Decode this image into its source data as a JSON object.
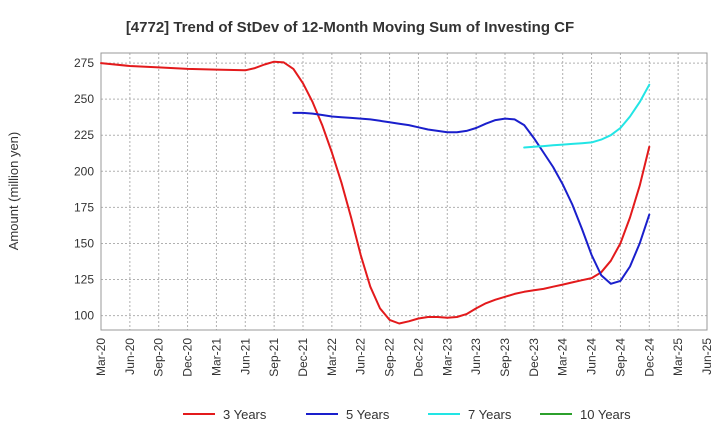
{
  "chart_data": {
    "type": "line",
    "title": "[4772]  Trend of StDev of 12-Month Moving Sum of Investing CF",
    "ylabel": "Amount (million yen)",
    "xlabel": "",
    "ylim": [
      90,
      282
    ],
    "yticks": [
      100,
      125,
      150,
      175,
      200,
      225,
      250,
      275
    ],
    "xlim": [
      "2020-03",
      "2025-06"
    ],
    "xticks": [
      "Mar-20",
      "Jun-20",
      "Sep-20",
      "Dec-20",
      "Mar-21",
      "Jun-21",
      "Sep-21",
      "Dec-21",
      "Mar-22",
      "Jun-22",
      "Sep-22",
      "Dec-22",
      "Mar-23",
      "Jun-23",
      "Sep-23",
      "Dec-23",
      "Mar-24",
      "Jun-24",
      "Sep-24",
      "Dec-24",
      "Mar-25",
      "Jun-25"
    ],
    "grid": true,
    "legend_position": "bottom",
    "series": [
      {
        "name": "3 Years",
        "color": "#e31a1c",
        "points": [
          [
            "2020-03",
            275
          ],
          [
            "2020-06",
            273
          ],
          [
            "2020-09",
            272
          ],
          [
            "2020-12",
            271
          ],
          [
            "2021-03",
            270.5
          ],
          [
            "2021-06",
            270
          ],
          [
            "2021-07",
            271.5
          ],
          [
            "2021-08",
            274
          ],
          [
            "2021-09",
            276
          ],
          [
            "2021-10",
            275.5
          ],
          [
            "2021-11",
            271
          ],
          [
            "2021-12",
            261
          ],
          [
            "2022-01",
            248
          ],
          [
            "2022-02",
            232
          ],
          [
            "2022-03",
            213
          ],
          [
            "2022-04",
            192
          ],
          [
            "2022-05",
            168
          ],
          [
            "2022-06",
            142
          ],
          [
            "2022-07",
            120
          ],
          [
            "2022-08",
            105
          ],
          [
            "2022-09",
            97
          ],
          [
            "2022-10",
            94.5
          ],
          [
            "2022-11",
            96
          ],
          [
            "2022-12",
            98
          ],
          [
            "2023-01",
            99
          ],
          [
            "2023-02",
            99
          ],
          [
            "2023-03",
            98.5
          ],
          [
            "2023-04",
            99
          ],
          [
            "2023-05",
            101
          ],
          [
            "2023-06",
            105
          ],
          [
            "2023-07",
            108.5
          ],
          [
            "2023-08",
            111
          ],
          [
            "2023-09",
            113
          ],
          [
            "2023-10",
            115
          ],
          [
            "2023-11",
            116.5
          ],
          [
            "2023-12",
            117.5
          ],
          [
            "2024-01",
            118.5
          ],
          [
            "2024-02",
            120
          ],
          [
            "2024-03",
            121.5
          ],
          [
            "2024-04",
            123
          ],
          [
            "2024-05",
            124.5
          ],
          [
            "2024-06",
            126
          ],
          [
            "2024-07",
            130
          ],
          [
            "2024-08",
            138
          ],
          [
            "2024-09",
            150
          ],
          [
            "2024-10",
            168
          ],
          [
            "2024-11",
            190
          ],
          [
            "2024-12",
            217
          ]
        ]
      },
      {
        "name": "5 Years",
        "color": "#1a1fcc",
        "points": [
          [
            "2021-11",
            240.5
          ],
          [
            "2021-12",
            240.5
          ],
          [
            "2022-01",
            240
          ],
          [
            "2022-02",
            239
          ],
          [
            "2022-03",
            238
          ],
          [
            "2022-04",
            237.5
          ],
          [
            "2022-05",
            237
          ],
          [
            "2022-06",
            236.5
          ],
          [
            "2022-07",
            236
          ],
          [
            "2022-08",
            235
          ],
          [
            "2022-09",
            234
          ],
          [
            "2022-10",
            233
          ],
          [
            "2022-11",
            232
          ],
          [
            "2022-12",
            230.5
          ],
          [
            "2023-01",
            229
          ],
          [
            "2023-02",
            228
          ],
          [
            "2023-03",
            227
          ],
          [
            "2023-04",
            227
          ],
          [
            "2023-05",
            228
          ],
          [
            "2023-06",
            230
          ],
          [
            "2023-07",
            233
          ],
          [
            "2023-08",
            235.5
          ],
          [
            "2023-09",
            236.5
          ],
          [
            "2023-10",
            236
          ],
          [
            "2023-11",
            232
          ],
          [
            "2023-12",
            223
          ],
          [
            "2024-01",
            213
          ],
          [
            "2024-02",
            203
          ],
          [
            "2024-03",
            191
          ],
          [
            "2024-04",
            177
          ],
          [
            "2024-05",
            160
          ],
          [
            "2024-06",
            142
          ],
          [
            "2024-07",
            128
          ],
          [
            "2024-08",
            122
          ],
          [
            "2024-09",
            124
          ],
          [
            "2024-10",
            134
          ],
          [
            "2024-11",
            150
          ],
          [
            "2024-12",
            170
          ]
        ]
      },
      {
        "name": "7 Years",
        "color": "#22e5e5",
        "points": [
          [
            "2023-11",
            216.5
          ],
          [
            "2023-12",
            217
          ],
          [
            "2024-01",
            217.5
          ],
          [
            "2024-02",
            218
          ],
          [
            "2024-03",
            218.5
          ],
          [
            "2024-04",
            219
          ],
          [
            "2024-05",
            219.5
          ],
          [
            "2024-06",
            220
          ],
          [
            "2024-07",
            222
          ],
          [
            "2024-08",
            225
          ],
          [
            "2024-09",
            230
          ],
          [
            "2024-10",
            238
          ],
          [
            "2024-11",
            248
          ],
          [
            "2024-12",
            260
          ]
        ]
      },
      {
        "name": "10 Years",
        "color": "#2ca02c",
        "points": []
      }
    ]
  }
}
